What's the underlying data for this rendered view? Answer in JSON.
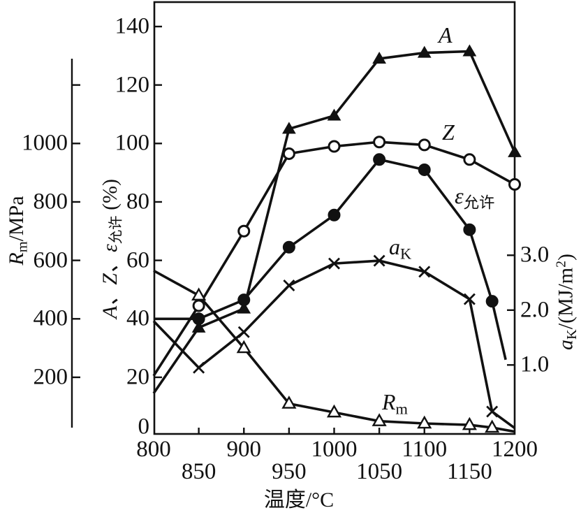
{
  "chart_data": {
    "type": "line",
    "description_visible_text_only": "hot-working property curves vs temperature",
    "axes": {
      "x": {
        "title": "温度/°C",
        "min": 800,
        "max": 1200,
        "tick_row1": [
          800,
          900,
          1000,
          1100,
          1200
        ],
        "tick_row2": [
          850,
          950,
          1050,
          1150
        ]
      },
      "left_outer": {
        "title_parts": {
          "main": "R",
          "sub": "m",
          "rest": "/MPa"
        },
        "ticks": [
          200,
          400,
          600,
          800,
          1000
        ],
        "has_unlabeled_top_tick": true
      },
      "left_inner": {
        "title_parts": {
          "main": "A、Z、ε",
          "sub": "允许",
          "rest": " (%)"
        },
        "ticks": [
          0,
          20,
          40,
          60,
          80,
          100,
          120,
          140
        ]
      },
      "right": {
        "title_parts": {
          "main": "a",
          "sub": "K",
          "rest": "/(MJ/m",
          "sup": "2",
          "close": ")"
        },
        "ticks": [
          1.0,
          2.0,
          3.0
        ]
      }
    },
    "series": [
      {
        "id": "Rm",
        "label_main": "R",
        "label_sub": "m",
        "axis": "mpa",
        "marker": "triangle-open",
        "points": [
          [
            800,
            565,
            0
          ],
          [
            850,
            480,
            1
          ],
          [
            900,
            300,
            1
          ],
          [
            950,
            110,
            1
          ],
          [
            1000,
            80,
            1
          ],
          [
            1050,
            50,
            1
          ],
          [
            1100,
            42,
            1
          ],
          [
            1150,
            37,
            1
          ],
          [
            1175,
            28,
            1
          ],
          [
            1200,
            14,
            0
          ]
        ]
      },
      {
        "id": "aK",
        "label_main": "a",
        "label_sub": "K",
        "axis": "ak",
        "marker": "x",
        "points": [
          [
            800,
            1.8,
            0
          ],
          [
            850,
            0.95,
            1
          ],
          [
            900,
            1.6,
            1
          ],
          [
            950,
            2.45,
            1
          ],
          [
            1000,
            2.85,
            1
          ],
          [
            1050,
            2.9,
            1
          ],
          [
            1100,
            2.7,
            1
          ],
          [
            1150,
            2.2,
            1
          ],
          [
            1175,
            0.15,
            1
          ],
          [
            1200,
            -0.15,
            0
          ]
        ]
      },
      {
        "id": "eps",
        "label_main": "ε",
        "label_sub": "允许",
        "axis": "pct",
        "marker": "circle-filled",
        "points": [
          [
            800,
            40,
            0
          ],
          [
            850,
            40,
            1
          ],
          [
            900,
            46.5,
            1
          ],
          [
            950,
            64.5,
            1
          ],
          [
            1000,
            75.5,
            1
          ],
          [
            1050,
            94.5,
            1
          ],
          [
            1100,
            91,
            1
          ],
          [
            1150,
            70.5,
            1
          ],
          [
            1175,
            46,
            1
          ],
          [
            1190,
            26,
            0
          ]
        ]
      },
      {
        "id": "Z",
        "label_main": "Z",
        "label_sub": "",
        "axis": "pct",
        "marker": "circle-open",
        "points": [
          [
            800,
            20.5,
            0
          ],
          [
            850,
            44.5,
            1
          ],
          [
            900,
            70,
            1
          ],
          [
            950,
            96.5,
            1
          ],
          [
            1000,
            99,
            1
          ],
          [
            1050,
            100.5,
            1
          ],
          [
            1100,
            99.5,
            1
          ],
          [
            1150,
            94.5,
            1
          ],
          [
            1200,
            86,
            1
          ]
        ]
      },
      {
        "id": "A",
        "label_main": "A",
        "label_sub": "",
        "axis": "pct",
        "marker": "triangle-filled",
        "points": [
          [
            800,
            14.5,
            0
          ],
          [
            850,
            37,
            1
          ],
          [
            900,
            43.5,
            1
          ],
          [
            950,
            105,
            1
          ],
          [
            1000,
            109.5,
            1
          ],
          [
            1050,
            129,
            1
          ],
          [
            1100,
            131,
            1
          ],
          [
            1150,
            131.5,
            1
          ],
          [
            1200,
            97,
            1
          ]
        ]
      }
    ],
    "line_color": "#111111",
    "background_color": "#ffffff"
  }
}
